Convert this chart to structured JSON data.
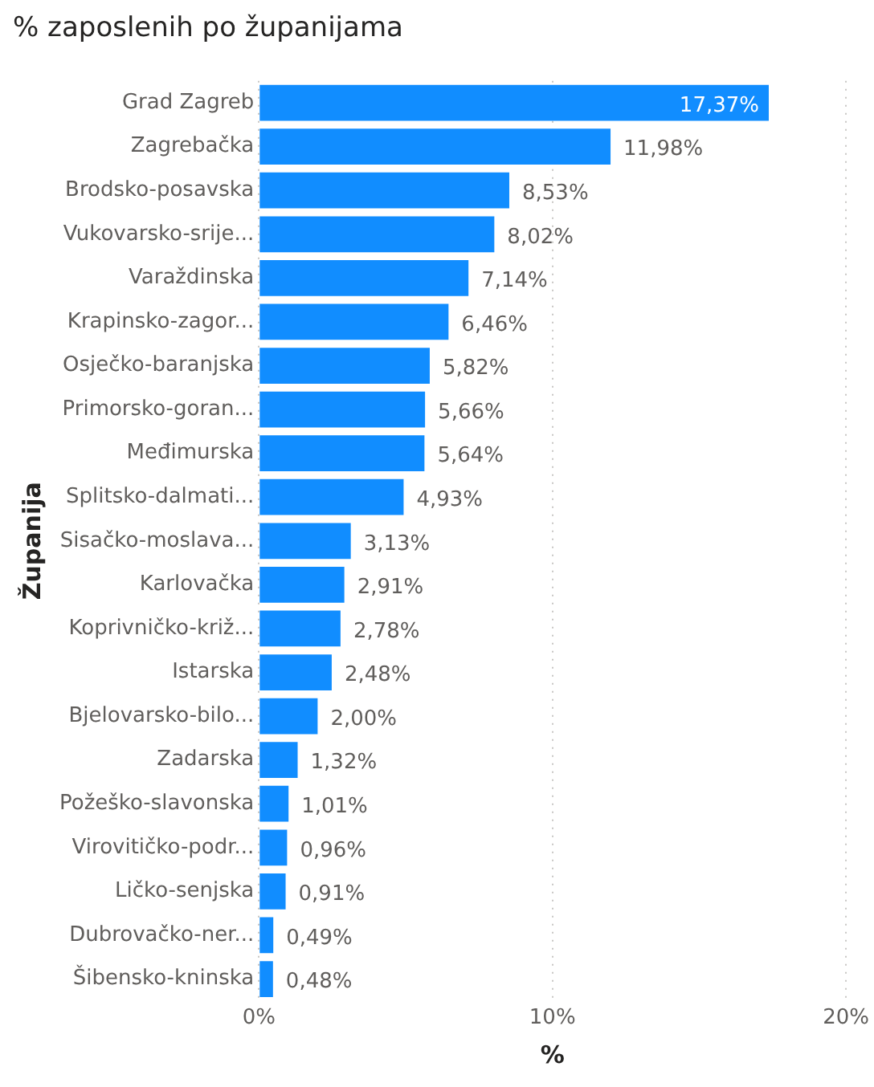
{
  "chart_data": {
    "type": "bar",
    "orientation": "horizontal",
    "title": "% zaposlenih po županijama",
    "xlabel": "%",
    "ylabel": "Županija",
    "categories": [
      "Grad Zagreb",
      "Zagrebačka",
      "Brodsko-posavska",
      "Vukovarsko-srije...",
      "Varaždinska",
      "Krapinsko-zagor...",
      "Osječko-baranjska",
      "Primorsko-goran...",
      "Međimurska",
      "Splitsko-dalmati...",
      "Sisačko-moslava...",
      "Karlovačka",
      "Koprivničko-križ...",
      "Istarska",
      "Bjelovarsko-bilo...",
      "Zadarska",
      "Požeško-slavonska",
      "Virovitičko-podr...",
      "Ličko-senjska",
      "Dubrovačko-ner...",
      "Šibensko-kninska"
    ],
    "values": [
      17.37,
      11.98,
      8.53,
      8.02,
      7.14,
      6.46,
      5.82,
      5.66,
      5.64,
      4.93,
      3.13,
      2.91,
      2.78,
      2.48,
      2.0,
      1.32,
      1.01,
      0.96,
      0.91,
      0.49,
      0.48
    ],
    "value_labels": [
      "17,37%",
      "11,98%",
      "8,53%",
      "8,02%",
      "7,14%",
      "6,46%",
      "5,82%",
      "5,66%",
      "5,64%",
      "4,93%",
      "3,13%",
      "2,91%",
      "2,78%",
      "2,48%",
      "2,00%",
      "1,32%",
      "1,01%",
      "0,96%",
      "0,91%",
      "0,49%",
      "0,48%"
    ],
    "color": "#118dff",
    "xlim": [
      0,
      20
    ],
    "xticks": [
      {
        "value": 0,
        "label": "0%"
      },
      {
        "value": 10,
        "label": "10%"
      },
      {
        "value": 20,
        "label": "20%"
      }
    ],
    "grid": "x",
    "legend": false
  }
}
